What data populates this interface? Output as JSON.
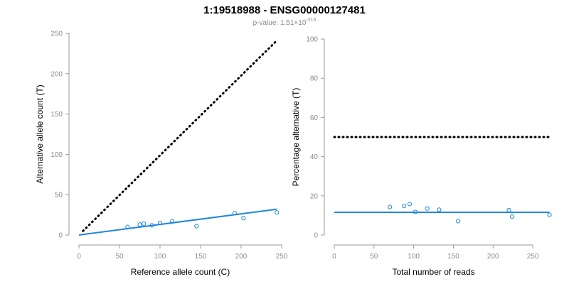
{
  "figure": {
    "title": "1:19518988 - ENSG00000127481",
    "pvalue_prefix": "p-value: ",
    "pvalue_mantissa": "1.51",
    "pvalue_times": "×",
    "pvalue_base": "10",
    "pvalue_exponent": "-215"
  },
  "colors": {
    "fit": "#1f88dc",
    "points": "#1f88dc",
    "reference": "#000000",
    "axis": "#9a9a9a",
    "tick_text": "#8a8a8a",
    "label_text": "#000000"
  },
  "chart_data": [
    {
      "type": "scatter",
      "xlabel": "Reference allele count (C)",
      "ylabel": "Alternative allele count (T)",
      "xlim": [
        0,
        250
      ],
      "ylim": [
        0,
        250
      ],
      "xticks": [
        0,
        50,
        100,
        150,
        200,
        250
      ],
      "yticks": [
        0,
        50,
        100,
        150,
        200,
        250
      ],
      "points": {
        "x": [
          60,
          75,
          80,
          90,
          100,
          115,
          145,
          192,
          203,
          244
        ],
        "y": [
          10,
          13,
          14,
          12,
          15,
          17,
          11,
          27,
          21,
          28
        ]
      },
      "fit_line": {
        "x": [
          0,
          244
        ],
        "y": [
          0,
          32
        ]
      },
      "reference_line": {
        "x": [
          5,
          244
        ],
        "y": [
          5,
          241
        ]
      }
    },
    {
      "type": "scatter",
      "xlabel": "Total number of reads",
      "ylabel": "Percentage alternative (T)",
      "xlim": [
        0,
        275
      ],
      "ylim": [
        0,
        100
      ],
      "xticks": [
        0,
        50,
        100,
        150,
        200,
        250
      ],
      "yticks": [
        0,
        20,
        40,
        60,
        80,
        100
      ],
      "points": {
        "x": [
          70,
          88,
          95,
          102,
          117,
          132,
          156,
          220,
          224,
          271
        ],
        "y": [
          14.3,
          14.8,
          15.8,
          11.8,
          13.5,
          12.9,
          7.1,
          12.7,
          9.4,
          10.3
        ]
      },
      "fit_line": {
        "x": [
          0,
          271
        ],
        "y": [
          11.6,
          11.6
        ]
      },
      "reference_line": {
        "x": [
          0,
          271
        ],
        "y": [
          50,
          50
        ]
      }
    }
  ]
}
